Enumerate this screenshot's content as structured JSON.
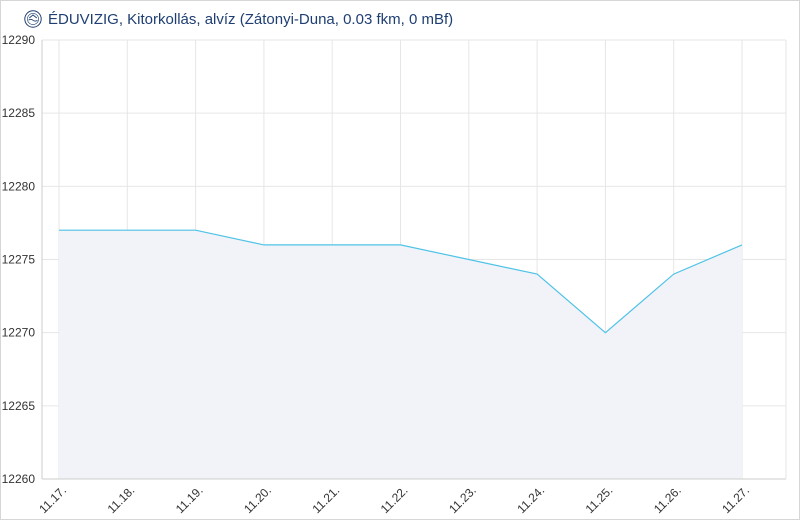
{
  "header": {
    "title": "ÉDUVIZIG, Kitorkollás, alvíz (Zátonyi-Duna, 0.03 fkm, 0 mBf)",
    "logo_icon": "eduvizig-logo-icon"
  },
  "colors": {
    "line": "#4fc3e6",
    "area": "#f2f3f8",
    "grid": "#e6e6e6",
    "axis": "#cccccc",
    "title": "#1f3f73"
  },
  "chart_data": {
    "type": "area",
    "title": "ÉDUVIZIG, Kitorkollás, alvíz (Zátonyi-Duna, 0.03 fkm, 0 mBf)",
    "xlabel": "",
    "ylabel": "",
    "ylim": [
      12260,
      12290
    ],
    "yticks": [
      12290,
      12285,
      12280,
      12275,
      12270,
      12265,
      12260
    ],
    "x_tick_labels": [
      "11.17.",
      "11.18.",
      "11.19.",
      "11.20.",
      "11.21.",
      "11.22.",
      "11.23.",
      "11.24.",
      "11.25.",
      "11.26.",
      "11.27."
    ],
    "grid": true,
    "legend": "none",
    "series": [
      {
        "x": [
          0.0,
          1.0,
          2.0,
          3.0,
          4.0,
          5.0,
          6.0,
          7.0,
          8.0,
          9.0,
          10.0
        ],
        "y": [
          12277,
          12277,
          12277,
          12276,
          12276,
          12276,
          12275,
          12274,
          12270,
          12274,
          12276
        ]
      }
    ]
  }
}
